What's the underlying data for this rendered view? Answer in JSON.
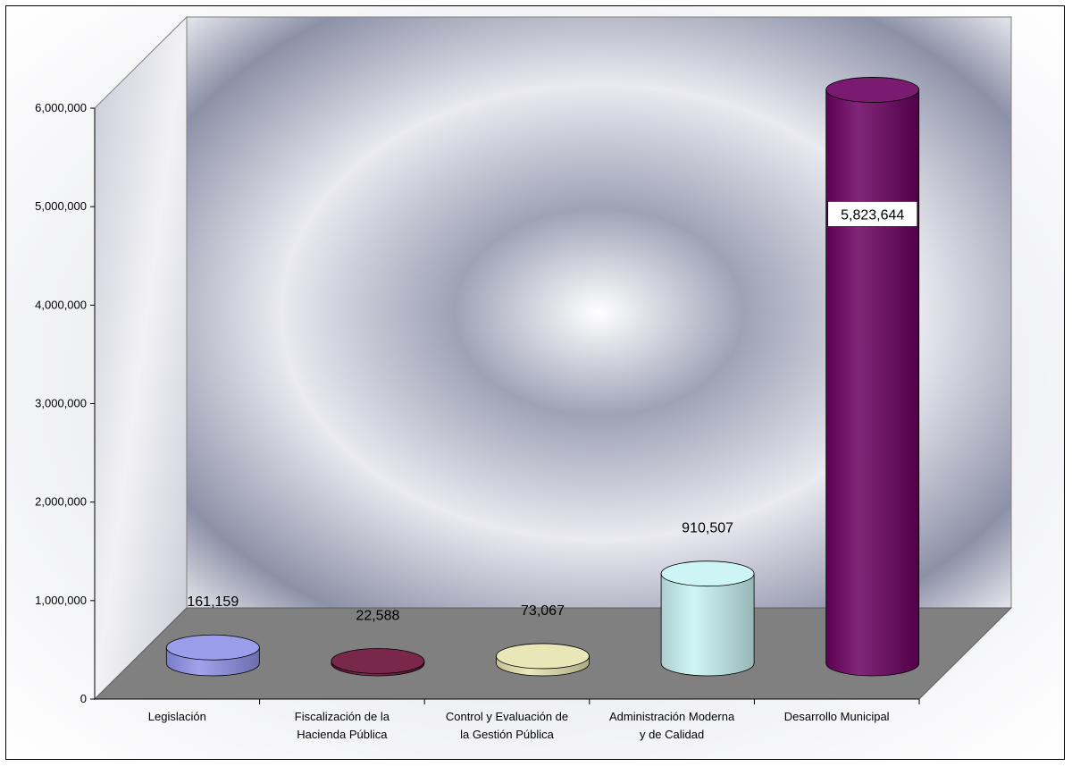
{
  "chart_data": {
    "type": "bar",
    "title": "",
    "xlabel": "",
    "ylabel": "",
    "ylim": [
      0,
      6000000
    ],
    "y_ticks": [
      0,
      1000000,
      2000000,
      3000000,
      4000000,
      5000000,
      6000000
    ],
    "y_tick_labels": [
      "0",
      "1,000,000",
      "2,000,000",
      "3,000,000",
      "4,000,000",
      "5,000,000",
      "6,000,000"
    ],
    "categories": [
      [
        "Legislación"
      ],
      [
        "Fiscalización de la",
        "Hacienda Pública"
      ],
      [
        "Control y Evaluación de",
        "la Gestión Pública"
      ],
      [
        "Administración Moderna",
        "y de Calidad"
      ],
      [
        "Desarrollo Municipal"
      ]
    ],
    "values": [
      161159,
      22588,
      73067,
      910507,
      5823644
    ],
    "value_labels": [
      "161,159",
      "22,588",
      "73,067",
      "910,507",
      "5,823,644"
    ],
    "bar_colors": [
      "#8f93e8",
      "#6a1037",
      "#e6e4b0",
      "#c9f4f4",
      "#6b0060"
    ],
    "grid": false,
    "legend": "none",
    "style": "3d-cylinder"
  }
}
